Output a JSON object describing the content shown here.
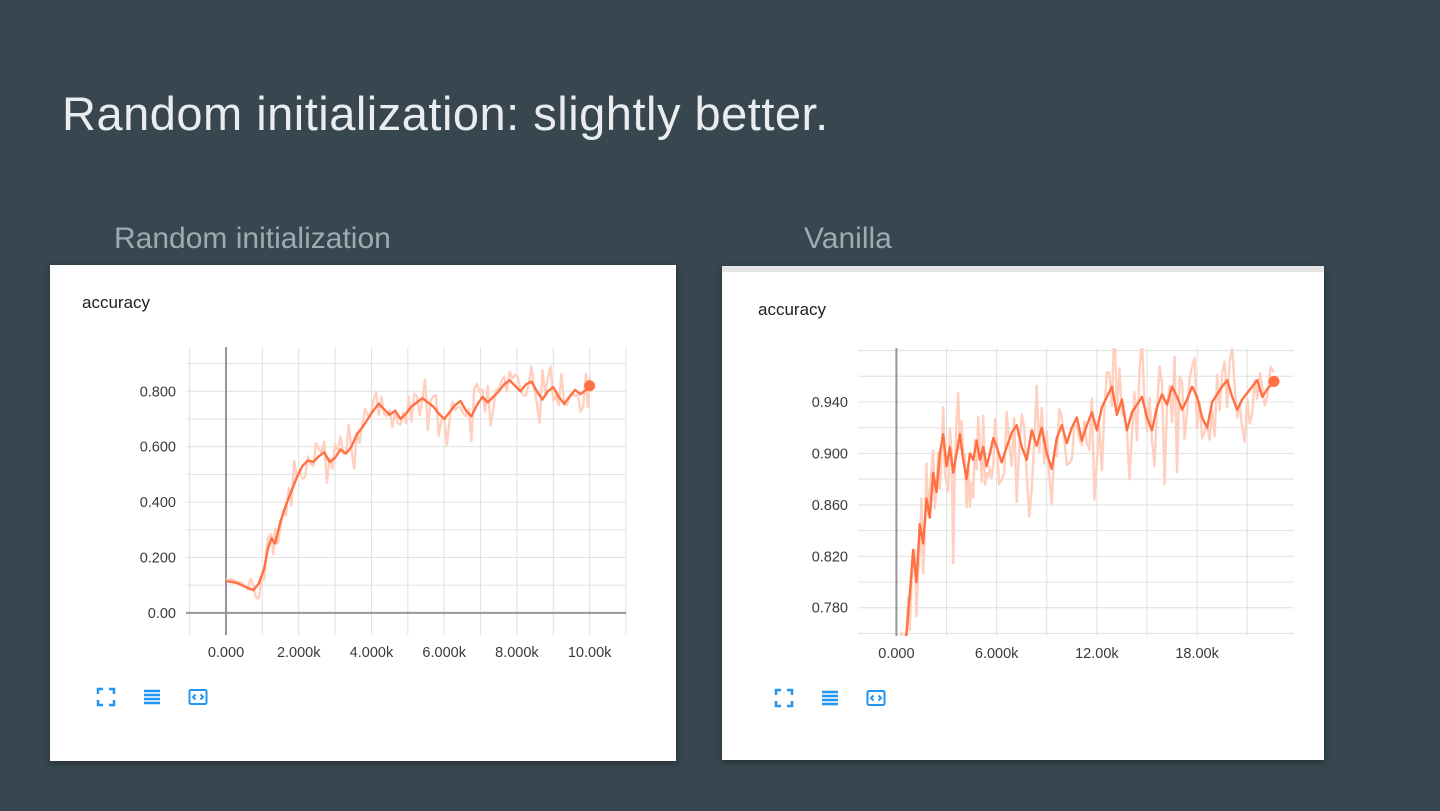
{
  "slide": {
    "title": "Random initialization: slightly better.",
    "background": "#37464f",
    "title_color": "#e9edef",
    "label_color": "#9fabb2"
  },
  "panels": [
    {
      "label": "Random initialization"
    },
    {
      "label": "Vanilla"
    }
  ],
  "toolbar": {
    "color": "#2196f3",
    "icons": [
      "fullscreen-icon",
      "runs-list-icon",
      "fit-to-data-icon"
    ]
  },
  "chart_data": [
    {
      "type": "line",
      "title": "accuracy",
      "panel": "Random initialization",
      "xlabel": "",
      "ylabel": "",
      "xlim": [
        -1100,
        11000
      ],
      "ylim": [
        -0.08,
        0.96
      ],
      "x_ticks": [
        {
          "v": 0,
          "label": "0.000"
        },
        {
          "v": 2000,
          "label": "2.000k"
        },
        {
          "v": 4000,
          "label": "4.000k"
        },
        {
          "v": 6000,
          "label": "6.000k"
        },
        {
          "v": 8000,
          "label": "8.000k"
        },
        {
          "v": 10000,
          "label": "10.00k"
        }
      ],
      "y_ticks": [
        {
          "v": 0,
          "label": "0.00"
        },
        {
          "v": 0.2,
          "label": "0.200"
        },
        {
          "v": 0.4,
          "label": "0.400"
        },
        {
          "v": 0.6,
          "label": "0.600"
        },
        {
          "v": 0.8,
          "label": "0.800"
        }
      ],
      "x_grid_step": 1000,
      "y_grid_step": 0.1,
      "grid": true,
      "legend": "none",
      "end_marker": true,
      "colors": {
        "line": "#ff7043",
        "line_light": "#ffd0bf",
        "grid": "#e0e0e0",
        "zero": "#979797",
        "tick": "#3a3a3a"
      },
      "series": [
        {
          "name": "raw",
          "role": "raw",
          "derived_from": "smoothed",
          "jitter": 0.055,
          "spike_prob": 0.22,
          "spike_scale": 2.2,
          "seed": 11
        },
        {
          "name": "smoothed",
          "role": "smoothed",
          "points": [
            [
              0,
              0.115
            ],
            [
              300,
              0.108
            ],
            [
              600,
              0.09
            ],
            [
              750,
              0.082
            ],
            [
              900,
              0.105
            ],
            [
              1050,
              0.16
            ],
            [
              1150,
              0.23
            ],
            [
              1250,
              0.27
            ],
            [
              1350,
              0.25
            ],
            [
              1500,
              0.33
            ],
            [
              1650,
              0.39
            ],
            [
              1800,
              0.44
            ],
            [
              1950,
              0.49
            ],
            [
              2100,
              0.53
            ],
            [
              2250,
              0.55
            ],
            [
              2400,
              0.545
            ],
            [
              2550,
              0.565
            ],
            [
              2700,
              0.58
            ],
            [
              2850,
              0.545
            ],
            [
              3000,
              0.56
            ],
            [
              3150,
              0.59
            ],
            [
              3300,
              0.575
            ],
            [
              3450,
              0.6
            ],
            [
              3600,
              0.645
            ],
            [
              3750,
              0.67
            ],
            [
              3900,
              0.7
            ],
            [
              4050,
              0.73
            ],
            [
              4200,
              0.755
            ],
            [
              4350,
              0.735
            ],
            [
              4500,
              0.715
            ],
            [
              4650,
              0.73
            ],
            [
              4800,
              0.7
            ],
            [
              4950,
              0.72
            ],
            [
              5100,
              0.745
            ],
            [
              5250,
              0.76
            ],
            [
              5400,
              0.775
            ],
            [
              5550,
              0.76
            ],
            [
              5700,
              0.745
            ],
            [
              5850,
              0.72
            ],
            [
              6000,
              0.7
            ],
            [
              6150,
              0.725
            ],
            [
              6300,
              0.75
            ],
            [
              6450,
              0.765
            ],
            [
              6600,
              0.73
            ],
            [
              6750,
              0.71
            ],
            [
              6900,
              0.75
            ],
            [
              7050,
              0.78
            ],
            [
              7200,
              0.76
            ],
            [
              7350,
              0.78
            ],
            [
              7500,
              0.8
            ],
            [
              7650,
              0.825
            ],
            [
              7800,
              0.84
            ],
            [
              7950,
              0.82
            ],
            [
              8100,
              0.8
            ],
            [
              8250,
              0.825
            ],
            [
              8400,
              0.835
            ],
            [
              8550,
              0.8
            ],
            [
              8700,
              0.77
            ],
            [
              8850,
              0.8
            ],
            [
              9000,
              0.815
            ],
            [
              9150,
              0.78
            ],
            [
              9300,
              0.755
            ],
            [
              9450,
              0.78
            ],
            [
              9600,
              0.805
            ],
            [
              9750,
              0.79
            ],
            [
              9900,
              0.805
            ],
            [
              10000,
              0.82
            ]
          ]
        }
      ]
    },
    {
      "type": "line",
      "title": "accuracy",
      "panel": "Vanilla",
      "xlabel": "",
      "ylabel": "",
      "xlim": [
        -2300,
        23800
      ],
      "ylim": [
        0.758,
        0.982
      ],
      "x_ticks": [
        {
          "v": 0,
          "label": "0.000"
        },
        {
          "v": 6000,
          "label": "6.000k"
        },
        {
          "v": 12000,
          "label": "12.00k"
        },
        {
          "v": 18000,
          "label": "18.00k"
        }
      ],
      "y_ticks": [
        {
          "v": 0.78,
          "label": "0.780"
        },
        {
          "v": 0.82,
          "label": "0.820"
        },
        {
          "v": 0.86,
          "label": "0.860"
        },
        {
          "v": 0.9,
          "label": "0.900"
        },
        {
          "v": 0.94,
          "label": "0.940"
        }
      ],
      "x_grid_step": 3000,
      "y_grid_step": 0.02,
      "grid": true,
      "legend": "none",
      "end_marker": true,
      "colors": {
        "line": "#ff7043",
        "line_light": "#ffd0bf",
        "grid": "#e0e0e0",
        "zero": "#979797",
        "tick": "#3a3a3a"
      },
      "series": [
        {
          "name": "raw",
          "role": "raw",
          "derived_from": "smoothed",
          "jitter": 0.028,
          "spike_prob": 0.2,
          "spike_scale": 3.0,
          "seed": 5
        },
        {
          "name": "smoothed",
          "role": "smoothed",
          "points": [
            [
              0,
              0.73
            ],
            [
              300,
              0.745
            ],
            [
              600,
              0.76
            ],
            [
              800,
              0.79
            ],
            [
              1000,
              0.825
            ],
            [
              1200,
              0.8
            ],
            [
              1400,
              0.845
            ],
            [
              1600,
              0.83
            ],
            [
              1800,
              0.865
            ],
            [
              2000,
              0.85
            ],
            [
              2200,
              0.885
            ],
            [
              2400,
              0.87
            ],
            [
              2600,
              0.9
            ],
            [
              2800,
              0.915
            ],
            [
              3000,
              0.89
            ],
            [
              3200,
              0.905
            ],
            [
              3400,
              0.885
            ],
            [
              3600,
              0.9
            ],
            [
              3800,
              0.915
            ],
            [
              4000,
              0.895
            ],
            [
              4200,
              0.88
            ],
            [
              4400,
              0.9
            ],
            [
              4600,
              0.895
            ],
            [
              4800,
              0.91
            ],
            [
              5000,
              0.895
            ],
            [
              5200,
              0.905
            ],
            [
              5400,
              0.89
            ],
            [
              5600,
              0.9
            ],
            [
              5800,
              0.912
            ],
            [
              6000,
              0.905
            ],
            [
              6300,
              0.893
            ],
            [
              6600,
              0.905
            ],
            [
              6900,
              0.916
            ],
            [
              7200,
              0.922
            ],
            [
              7500,
              0.905
            ],
            [
              7800,
              0.895
            ],
            [
              8100,
              0.918
            ],
            [
              8400,
              0.906
            ],
            [
              8700,
              0.92
            ],
            [
              9000,
              0.9
            ],
            [
              9300,
              0.888
            ],
            [
              9600,
              0.912
            ],
            [
              9900,
              0.922
            ],
            [
              10200,
              0.908
            ],
            [
              10500,
              0.92
            ],
            [
              10800,
              0.928
            ],
            [
              11100,
              0.91
            ],
            [
              11400,
              0.922
            ],
            [
              11700,
              0.932
            ],
            [
              12000,
              0.918
            ],
            [
              12300,
              0.936
            ],
            [
              12600,
              0.944
            ],
            [
              12900,
              0.952
            ],
            [
              13200,
              0.93
            ],
            [
              13500,
              0.942
            ],
            [
              13800,
              0.918
            ],
            [
              14100,
              0.932
            ],
            [
              14400,
              0.938
            ],
            [
              14700,
              0.944
            ],
            [
              15000,
              0.928
            ],
            [
              15300,
              0.918
            ],
            [
              15600,
              0.936
            ],
            [
              15900,
              0.946
            ],
            [
              16200,
              0.938
            ],
            [
              16500,
              0.952
            ],
            [
              16800,
              0.944
            ],
            [
              17100,
              0.934
            ],
            [
              17400,
              0.942
            ],
            [
              17700,
              0.952
            ],
            [
              18000,
              0.944
            ],
            [
              18300,
              0.928
            ],
            [
              18600,
              0.92
            ],
            [
              18900,
              0.94
            ],
            [
              19200,
              0.946
            ],
            [
              19500,
              0.952
            ],
            [
              19800,
              0.957
            ],
            [
              20100,
              0.944
            ],
            [
              20400,
              0.934
            ],
            [
              20700,
              0.942
            ],
            [
              21000,
              0.947
            ],
            [
              21300,
              0.952
            ],
            [
              21600,
              0.957
            ],
            [
              21900,
              0.944
            ],
            [
              22200,
              0.95
            ],
            [
              22600,
              0.956
            ]
          ]
        }
      ]
    }
  ]
}
